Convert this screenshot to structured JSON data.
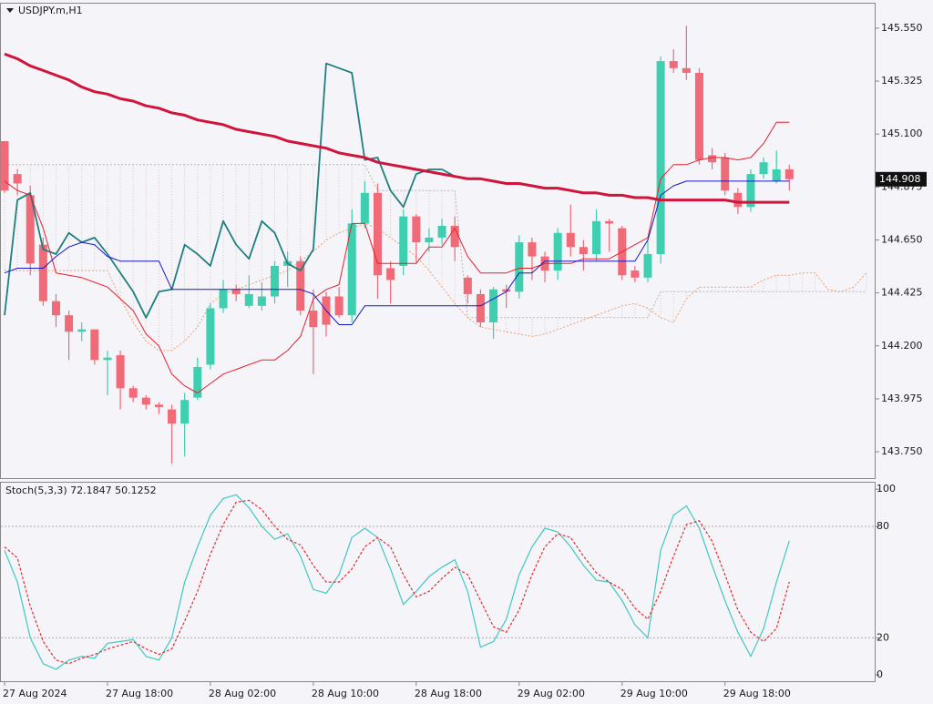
{
  "chart_data": [
    {
      "type": "candlestick",
      "title": "USDJPY.m,H1",
      "categories": [
        "27 Aug 2024",
        null,
        null,
        null,
        null,
        null,
        null,
        null,
        "27 Aug 18:00",
        null,
        null,
        null,
        null,
        null,
        null,
        null,
        "28 Aug 02:00",
        null,
        null,
        null,
        null,
        null,
        null,
        null,
        "28 Aug 10:00",
        null,
        null,
        null,
        null,
        null,
        null,
        null,
        "28 Aug 18:00",
        null,
        null,
        null,
        null,
        null,
        null,
        null,
        "29 Aug 02:00",
        null,
        null,
        null,
        null,
        null,
        null,
        null,
        "29 Aug 10:00",
        null,
        null,
        null,
        null,
        null,
        null,
        null,
        "29 Aug 18:00",
        null,
        null,
        null,
        null,
        null,
        null,
        null,
        null,
        null,
        null,
        null
      ],
      "open": [
        145.07,
        144.93,
        144.84,
        144.63,
        144.39,
        144.33,
        144.26,
        144.27,
        144.14,
        144.16,
        144.02,
        143.98,
        143.95,
        143.93,
        143.87,
        143.98,
        144.12,
        144.36,
        144.44,
        144.37,
        144.37,
        144.41,
        144.54,
        144.56,
        144.35,
        144.41,
        144.41,
        144.33,
        144.72,
        144.85,
        144.53,
        144.54,
        144.75,
        144.64,
        144.66,
        144.71,
        144.49,
        144.42,
        144.3,
        144.44,
        144.43,
        144.64,
        144.58,
        144.52,
        144.68,
        144.62,
        144.59,
        144.73,
        144.7,
        144.52,
        144.49,
        144.59,
        145.41,
        145.38,
        145.36,
        145.01,
        145.0,
        144.85,
        144.79,
        144.93,
        144.9,
        144.95,
        null,
        null,
        null,
        null,
        null,
        null
      ],
      "high": [
        145.07,
        144.95,
        144.88,
        144.66,
        144.42,
        144.35,
        144.3,
        144.27,
        144.18,
        144.18,
        144.03,
        143.99,
        143.96,
        143.95,
        144.0,
        144.15,
        144.38,
        144.48,
        144.46,
        144.5,
        144.47,
        144.56,
        144.6,
        144.58,
        144.44,
        144.43,
        144.45,
        144.78,
        144.9,
        144.89,
        144.56,
        144.78,
        144.76,
        144.7,
        144.74,
        144.75,
        144.5,
        144.44,
        144.45,
        144.46,
        144.67,
        144.66,
        144.6,
        144.7,
        144.8,
        144.65,
        144.78,
        144.74,
        144.71,
        144.54,
        144.65,
        145.43,
        145.46,
        145.56,
        145.38,
        145.04,
        145.02,
        144.87,
        144.95,
        145.0,
        145.03,
        144.97,
        null,
        null,
        null,
        null,
        null,
        null
      ],
      "low": [
        144.85,
        144.84,
        144.5,
        144.37,
        144.28,
        144.14,
        144.22,
        144.12,
        143.99,
        143.93,
        143.96,
        143.93,
        143.91,
        143.7,
        143.73,
        143.97,
        144.1,
        144.34,
        144.39,
        144.36,
        144.35,
        144.38,
        144.45,
        144.33,
        144.08,
        144.24,
        144.32,
        144.3,
        144.7,
        144.4,
        144.38,
        144.5,
        144.55,
        144.6,
        144.63,
        144.56,
        144.38,
        144.28,
        144.23,
        144.36,
        144.4,
        144.48,
        144.47,
        144.48,
        144.58,
        144.52,
        144.56,
        144.6,
        144.48,
        144.47,
        144.47,
        144.55,
        145.36,
        145.33,
        144.97,
        144.95,
        144.84,
        144.76,
        144.77,
        144.91,
        144.89,
        144.86,
        null,
        null,
        null,
        null,
        null,
        null
      ],
      "close": [
        144.86,
        144.89,
        144.55,
        144.39,
        144.33,
        144.26,
        144.27,
        144.14,
        144.15,
        144.02,
        143.98,
        143.95,
        143.94,
        143.87,
        143.97,
        144.11,
        144.36,
        144.44,
        144.42,
        144.42,
        144.41,
        144.54,
        144.56,
        144.35,
        144.28,
        144.29,
        144.33,
        144.72,
        144.85,
        144.5,
        144.48,
        144.75,
        144.64,
        144.66,
        144.71,
        144.62,
        144.42,
        144.3,
        144.44,
        144.43,
        144.64,
        144.58,
        144.52,
        144.68,
        144.62,
        144.59,
        144.73,
        144.72,
        144.5,
        144.49,
        144.59,
        145.41,
        145.38,
        145.36,
        144.99,
        144.98,
        144.86,
        144.79,
        144.93,
        144.98,
        144.95,
        144.908,
        null,
        null,
        null,
        null,
        null,
        null
      ],
      "up_color": "#3ecfb0",
      "down_color": "#f06a78",
      "cloud": {
        "color_a": "#f0a070",
        "color_b": "#b8b8b8",
        "hatch_color": "#d8c8c8",
        "span_a": [
          144.52,
          144.52,
          144.52,
          144.52,
          144.52,
          144.52,
          144.52,
          144.52,
          144.52,
          144.4,
          144.3,
          144.22,
          144.18,
          144.18,
          144.22,
          144.28,
          144.38,
          144.42,
          144.44,
          144.46,
          144.48,
          144.5,
          144.52,
          144.56,
          144.6,
          144.65,
          144.68,
          144.7,
          144.72,
          144.7,
          144.66,
          144.62,
          144.58,
          144.52,
          144.45,
          144.38,
          144.32,
          144.28,
          144.27,
          144.26,
          144.25,
          144.24,
          144.25,
          144.27,
          144.29,
          144.31,
          144.33,
          144.35,
          144.37,
          144.38,
          144.36,
          144.32,
          144.3,
          144.4,
          144.45,
          144.45,
          144.45,
          144.45,
          144.45,
          144.48,
          144.5,
          144.5,
          144.51,
          144.51,
          144.44,
          144.43,
          144.45,
          144.51
        ],
        "span_b": [
          144.97,
          144.97,
          144.97,
          144.97,
          144.97,
          144.97,
          144.97,
          144.97,
          144.97,
          144.97,
          144.97,
          144.97,
          144.97,
          144.97,
          144.97,
          144.97,
          144.97,
          144.97,
          144.97,
          144.97,
          144.97,
          144.97,
          144.97,
          144.97,
          144.97,
          144.97,
          144.97,
          144.97,
          144.97,
          144.86,
          144.86,
          144.86,
          144.86,
          144.86,
          144.86,
          144.86,
          144.32,
          144.32,
          144.32,
          144.32,
          144.32,
          144.32,
          144.32,
          144.32,
          144.32,
          144.32,
          144.32,
          144.32,
          144.32,
          144.32,
          144.32,
          144.43,
          144.43,
          144.43,
          144.43,
          144.43,
          144.43,
          144.43,
          144.43,
          144.43,
          144.43,
          144.43,
          144.43,
          144.43,
          144.43,
          144.43,
          144.43,
          144.43
        ]
      },
      "overlays": [
        {
          "color": "#1f7f7c",
          "width": 1.8,
          "values": [
            144.33,
            144.82,
            144.85,
            144.61,
            144.59,
            144.68,
            144.64,
            144.66,
            144.59,
            144.51,
            144.43,
            144.32,
            144.43,
            144.44,
            144.63,
            144.59,
            144.54,
            144.73,
            144.63,
            144.57,
            144.73,
            144.68,
            144.55,
            144.52,
            144.61,
            145.4,
            145.38,
            145.36,
            144.99,
            145.0,
            144.86,
            144.79,
            144.93,
            144.95,
            144.95,
            144.92,
            null,
            null,
            null,
            null,
            null,
            null,
            null,
            null,
            null,
            null,
            null,
            null,
            null,
            null,
            null,
            null,
            null,
            null,
            null,
            null,
            null,
            null,
            null,
            null,
            null,
            null,
            null,
            null,
            null,
            null,
            null,
            null
          ]
        },
        {
          "color": "#e8202a",
          "width": 1,
          "values": [
            144.9,
            144.86,
            144.84,
            144.7,
            144.51,
            144.5,
            144.49,
            144.47,
            144.45,
            144.4,
            144.35,
            144.25,
            144.2,
            144.08,
            144.03,
            144.0,
            144.04,
            144.08,
            144.1,
            144.12,
            144.14,
            144.14,
            144.18,
            144.24,
            144.4,
            144.44,
            144.46,
            144.72,
            144.72,
            144.55,
            144.55,
            144.55,
            144.55,
            144.62,
            144.62,
            144.7,
            144.58,
            144.51,
            144.51,
            144.51,
            144.53,
            144.53,
            144.55,
            144.55,
            144.55,
            144.57,
            144.57,
            144.57,
            144.6,
            144.63,
            144.66,
            144.91,
            144.97,
            144.97,
            144.99,
            145.0,
            145.0,
            144.99,
            145.0,
            145.06,
            145.15,
            145.15,
            null,
            null,
            null,
            null,
            null,
            null
          ]
        },
        {
          "color": "#1818c8",
          "width": 1,
          "values": [
            144.51,
            144.53,
            144.53,
            144.53,
            144.58,
            144.62,
            144.64,
            144.63,
            144.58,
            144.56,
            144.56,
            144.56,
            144.56,
            144.44,
            144.44,
            144.44,
            144.44,
            144.44,
            144.44,
            144.44,
            144.44,
            144.44,
            144.44,
            144.44,
            144.42,
            144.35,
            144.29,
            144.29,
            144.37,
            144.37,
            144.37,
            144.37,
            144.37,
            144.37,
            144.37,
            144.37,
            144.37,
            144.37,
            144.4,
            144.43,
            144.51,
            144.51,
            144.56,
            144.56,
            144.56,
            144.56,
            144.56,
            144.56,
            144.56,
            144.56,
            144.65,
            144.84,
            144.88,
            144.9,
            144.9,
            144.9,
            144.9,
            144.9,
            144.9,
            144.9,
            144.9,
            144.9,
            null,
            null,
            null,
            null,
            null,
            null
          ]
        },
        {
          "color": "#d0143c",
          "width": 3,
          "values": [
            145.44,
            145.42,
            145.39,
            145.37,
            145.35,
            145.33,
            145.3,
            145.28,
            145.27,
            145.25,
            145.24,
            145.22,
            145.21,
            145.19,
            145.18,
            145.16,
            145.15,
            145.14,
            145.12,
            145.11,
            145.1,
            145.09,
            145.07,
            145.06,
            145.05,
            145.04,
            145.02,
            145.01,
            145.0,
            144.98,
            144.97,
            144.96,
            144.95,
            144.94,
            144.93,
            144.92,
            144.91,
            144.91,
            144.9,
            144.89,
            144.89,
            144.88,
            144.87,
            144.87,
            144.86,
            144.85,
            144.85,
            144.84,
            144.84,
            144.83,
            144.83,
            144.82,
            144.82,
            144.82,
            144.82,
            144.82,
            144.82,
            144.81,
            144.81,
            144.81,
            144.81,
            144.81,
            null,
            null,
            null,
            null,
            null,
            null
          ]
        }
      ],
      "ylim": [
        143.638,
        145.658
      ],
      "yticks": [
        {
          "value": 145.55,
          "label": "145.550"
        },
        {
          "value": 145.325,
          "label": "145.325"
        },
        {
          "value": 145.1,
          "label": "145.100"
        },
        {
          "value": 144.875,
          "label": "144.875"
        },
        {
          "value": 144.65,
          "label": "144.650"
        },
        {
          "value": 144.425,
          "label": "144.425"
        },
        {
          "value": 144.2,
          "label": "144.200"
        },
        {
          "value": 143.975,
          "label": "143.975"
        },
        {
          "value": 143.75,
          "label": "143.750"
        }
      ],
      "current_price": 144.908
    },
    {
      "type": "line",
      "title": "Stoch(5,3,3) 72.1847 50.1252",
      "series": [
        {
          "color": "#40c8c0",
          "dash": false,
          "values": [
            67,
            50,
            20,
            6,
            3,
            8,
            10,
            9,
            17,
            18,
            19,
            10,
            8,
            20,
            50,
            69,
            86,
            95,
            97,
            90,
            80,
            73,
            76,
            64,
            46,
            44,
            54,
            74,
            79,
            74,
            57,
            38,
            45,
            53,
            58,
            62,
            45,
            15,
            18,
            30,
            54,
            69,
            79,
            77,
            69,
            59,
            51,
            50,
            40,
            27,
            20,
            67,
            86,
            91,
            79,
            59,
            40,
            23,
            10,
            25,
            50,
            72.1847
          ]
        },
        {
          "color": "#e03030",
          "dash": true,
          "values": [
            69,
            63,
            37,
            18,
            8,
            6,
            9,
            11,
            14,
            16,
            18,
            14,
            11,
            14,
            29,
            45,
            65,
            81,
            93,
            94,
            89,
            80,
            73,
            70,
            59,
            50,
            50,
            57,
            69,
            74,
            69,
            54,
            42,
            45,
            52,
            58,
            54,
            40,
            26,
            23,
            35,
            54,
            69,
            76,
            74,
            64,
            55,
            50,
            46,
            36,
            30,
            45,
            64,
            81,
            83,
            72,
            54,
            35,
            23,
            18,
            25,
            50.1252
          ]
        }
      ],
      "ylim": [
        -3.4,
        104
      ],
      "yticks": [
        100,
        80,
        20,
        0
      ],
      "levels": [
        80,
        20
      ]
    }
  ]
}
